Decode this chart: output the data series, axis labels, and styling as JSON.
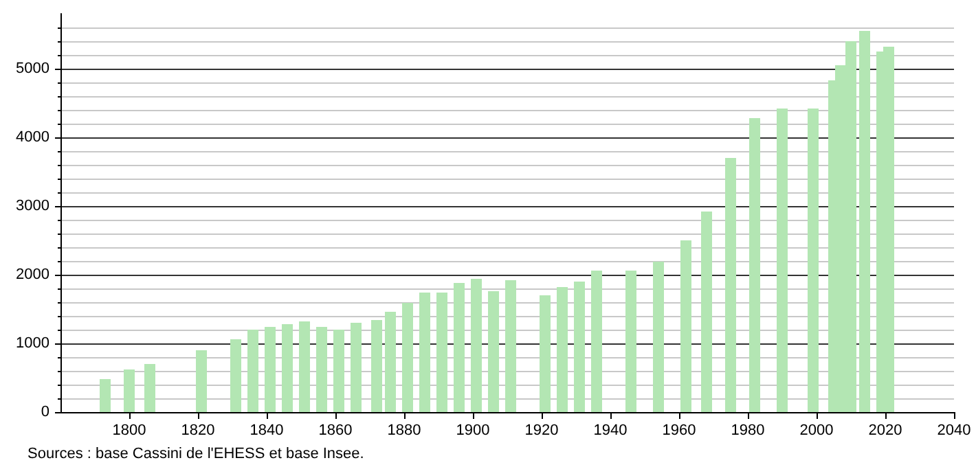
{
  "chart_data": {
    "type": "bar",
    "color": "#b3e6b3",
    "x": [
      1793,
      1800,
      1806,
      1821,
      1831,
      1836,
      1841,
      1846,
      1851,
      1856,
      1861,
      1866,
      1872,
      1876,
      1881,
      1886,
      1891,
      1896,
      1901,
      1906,
      1911,
      1921,
      1926,
      1931,
      1936,
      1946,
      1954,
      1962,
      1968,
      1975,
      1982,
      1990,
      1999,
      2005,
      2007,
      2010,
      2014,
      2019,
      2021
    ],
    "values": [
      480,
      620,
      700,
      900,
      1060,
      1200,
      1240,
      1280,
      1320,
      1240,
      1200,
      1300,
      1340,
      1460,
      1590,
      1740,
      1740,
      1880,
      1940,
      1760,
      1920,
      1700,
      1820,
      1900,
      2060,
      2060,
      2190,
      2500,
      2920,
      3700,
      4280,
      4420,
      4420,
      4830,
      5050,
      5400,
      5550,
      5250,
      5320
    ],
    "xlim": [
      1780,
      2040
    ],
    "xticks": [
      1800,
      1820,
      1840,
      1860,
      1880,
      1900,
      1920,
      1940,
      1960,
      1980,
      2000,
      2020,
      2040
    ],
    "ylim": [
      0,
      5800
    ],
    "yticks": [
      0,
      1000,
      2000,
      3000,
      4000,
      5000
    ],
    "grid": "y",
    "annotations": [
      "Sources : base Cassini de l'EHESS et base Insee."
    ]
  }
}
